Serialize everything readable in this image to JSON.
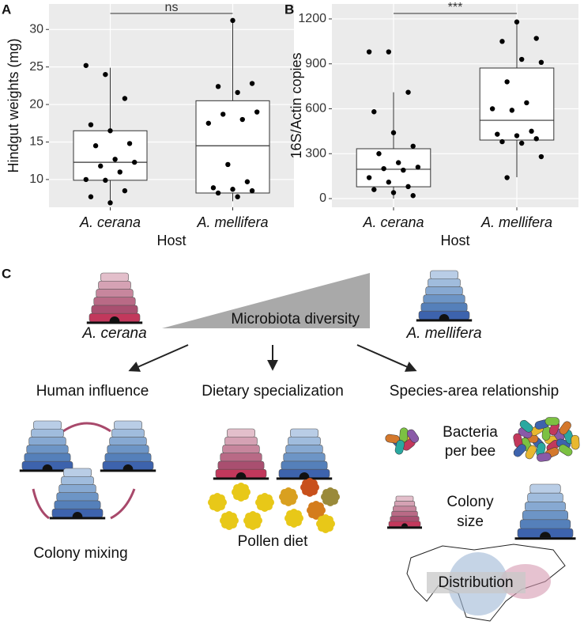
{
  "chart_data": [
    {
      "type": "box",
      "panel": "A",
      "ylabel": "Hindgut weights (mg)",
      "xlabel": "Host",
      "categories": [
        "A. cerana",
        "A. mellifera"
      ],
      "annotation": "ns",
      "grid": true,
      "ylim": [
        6.3,
        33.4
      ],
      "yticks": [
        10,
        15,
        20,
        25,
        30
      ],
      "boxes": [
        {
          "low": 6.7,
          "q1": 9.9,
          "median": 12.3,
          "q3": 16.5,
          "high": 24.9,
          "points": [
            25.2,
            24,
            20.8,
            17.3,
            16.5,
            14.8,
            14.5,
            12.7,
            12.3,
            11.8,
            11,
            10,
            9.9,
            8.5,
            7.7,
            6.9
          ]
        },
        {
          "low": 7.1,
          "q1": 8.2,
          "median": 14.5,
          "q3": 20.5,
          "high": 31.0,
          "points": [
            31.2,
            22.8,
            22.4,
            21.6,
            19,
            18.7,
            18,
            17.5,
            12,
            9.7,
            8.9,
            8.7,
            8.5,
            8.2,
            7.7
          ]
        }
      ]
    },
    {
      "type": "box",
      "panel": "B",
      "ylabel": "16S/Actin copies",
      "xlabel": "Host",
      "categories": [
        "A. cerana",
        "A. mellifera"
      ],
      "annotation": "***",
      "grid": true,
      "ylim": [
        -58,
        1300
      ],
      "yticks": [
        0,
        300,
        600,
        900,
        1200
      ],
      "boxes": [
        {
          "low": 0,
          "q1": 79,
          "median": 196,
          "q3": 333,
          "high": 710,
          "points": [
            980,
            980,
            710,
            580,
            440,
            350,
            300,
            240,
            210,
            200,
            190,
            140,
            110,
            80,
            60,
            40,
            20
          ]
        },
        {
          "low": 143,
          "q1": 391,
          "median": 523,
          "q3": 872,
          "high": 1180,
          "points": [
            1180,
            1070,
            1050,
            930,
            910,
            780,
            640,
            600,
            590,
            450,
            430,
            420,
            400,
            380,
            370,
            280,
            140
          ]
        }
      ]
    }
  ],
  "diagram": {
    "panel": "C",
    "left_species": "A. cerana",
    "right_species": "A. mellifera",
    "gradient_label": "Microbiota diversity",
    "branches": [
      "Human influence",
      "Dietary specialization",
      "Species-area relationship"
    ],
    "colony_mixing": "Colony mixing",
    "pollen_diet": "Pollen diet",
    "bacteria": [
      "Bacteria",
      "per bee"
    ],
    "colony_size": [
      "Colony",
      "size"
    ],
    "distribution": "Distribution"
  }
}
